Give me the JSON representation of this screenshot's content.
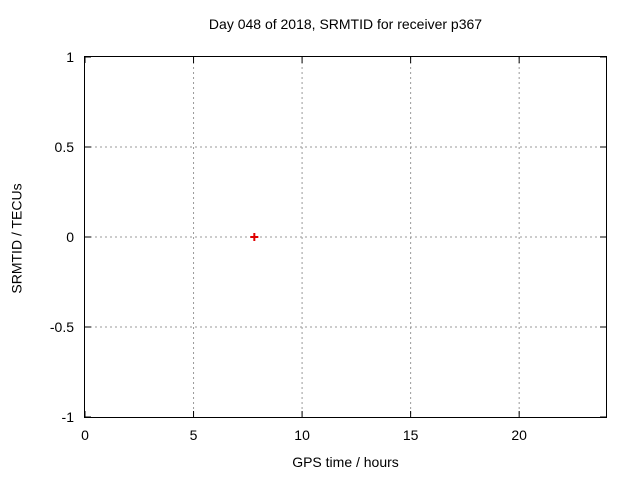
{
  "title": "Day 048 of 2018, SRMTID for receiver p367",
  "axes": {
    "xlabel": "GPS time / hours",
    "ylabel": "SRMTID / TECUs"
  },
  "colors": {
    "background": "#ffffff",
    "border": "#000000",
    "grid": "#999999",
    "tick": "#000000",
    "text": "#000000",
    "marker": "#e00000"
  },
  "chart_data": {
    "type": "scatter",
    "title": "Day 048 of 2018, SRMTID for receiver p367",
    "xlabel": "GPS time / hours",
    "ylabel": "SRMTID / TECUs",
    "xlim": [
      0,
      24
    ],
    "ylim": [
      -1,
      1
    ],
    "xticks": [
      0,
      5,
      10,
      15,
      20
    ],
    "xtick_labels": [
      "0",
      "5",
      "10",
      "15",
      "20"
    ],
    "yticks": [
      1,
      0.5,
      0,
      -0.5,
      -1
    ],
    "ytick_labels": [
      "1",
      "0.5",
      "0",
      "-0.5",
      "-1"
    ],
    "grid": true,
    "grid_style": "dotted",
    "legend": "none",
    "series": [
      {
        "name": "SRMTID",
        "marker": "plus",
        "color": "#e00000",
        "points": [
          [
            7.8,
            0.0
          ]
        ]
      }
    ]
  }
}
